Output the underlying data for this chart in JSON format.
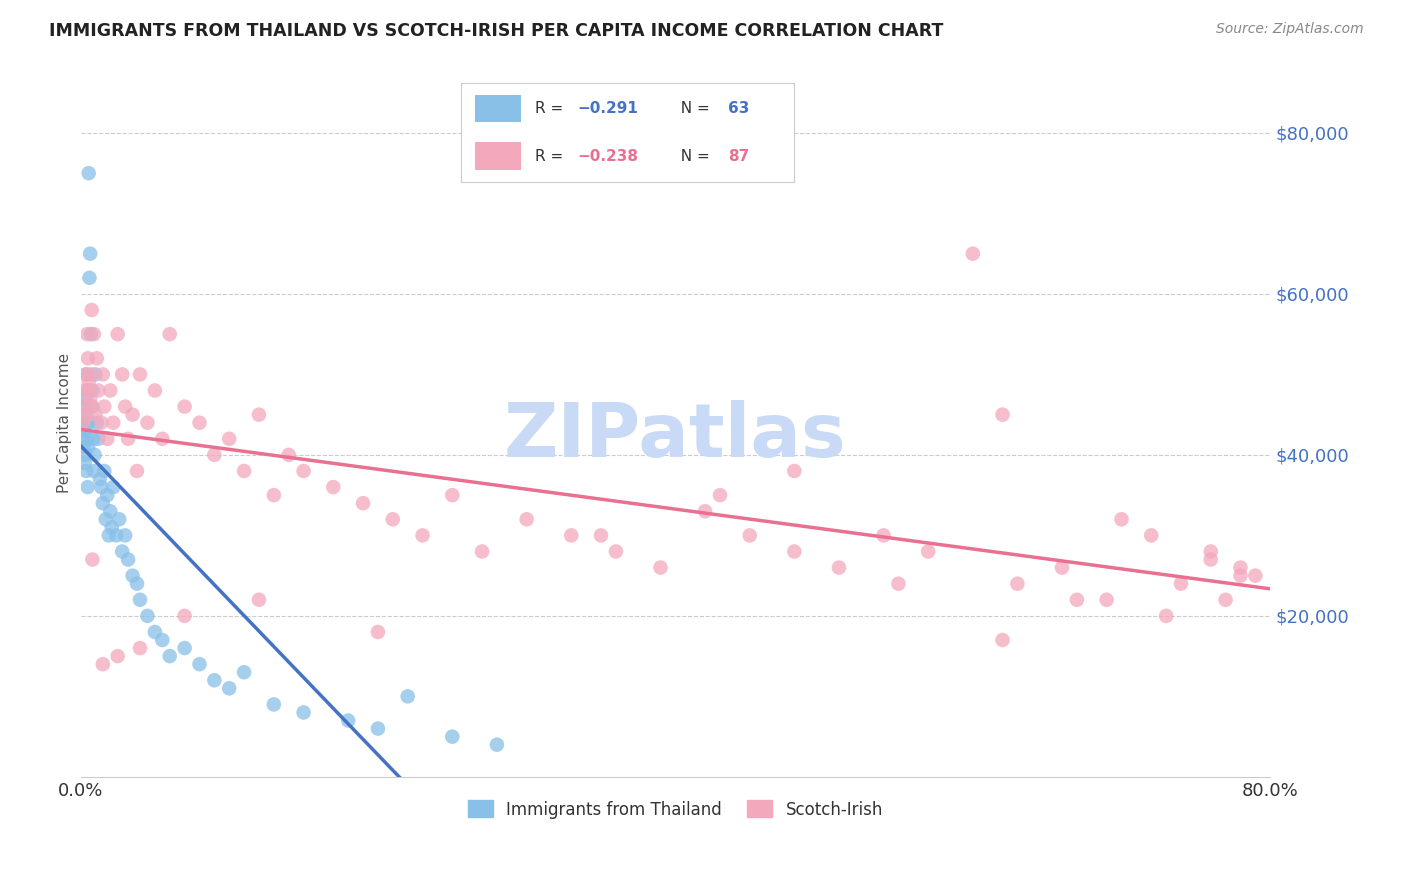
{
  "title": "IMMIGRANTS FROM THAILAND VS SCOTCH-IRISH PER CAPITA INCOME CORRELATION CHART",
  "source": "Source: ZipAtlas.com",
  "ylabel": "Per Capita Income",
  "legend_blue_label": "Immigrants from Thailand",
  "legend_pink_label": "Scotch-Irish",
  "legend_blue_r": "−0.291",
  "legend_blue_n": "63",
  "legend_pink_r": "−0.238",
  "legend_pink_n": "87",
  "background_color": "#ffffff",
  "grid_color": "#cccccc",
  "blue_scatter_color": "#89c0e8",
  "pink_scatter_color": "#f4a8bc",
  "blue_line_color": "#4472c4",
  "pink_line_color": "#e87090",
  "dash_line_color": "#bbbbbb",
  "watermark_text": "ZIPatlas",
  "watermark_color": "#c8daf5",
  "tick_color": "#4472c4",
  "thailand_x": [
    0.15,
    0.18,
    0.2,
    0.22,
    0.25,
    0.28,
    0.3,
    0.32,
    0.35,
    0.38,
    0.4,
    0.42,
    0.45,
    0.48,
    0.5,
    0.52,
    0.55,
    0.58,
    0.6,
    0.65,
    0.7,
    0.75,
    0.8,
    0.85,
    0.9,
    0.95,
    1.0,
    1.1,
    1.2,
    1.3,
    1.4,
    1.5,
    1.6,
    1.7,
    1.8,
    1.9,
    2.0,
    2.1,
    2.2,
    2.4,
    2.6,
    2.8,
    3.0,
    3.2,
    3.5,
    3.8,
    4.0,
    4.5,
    5.0,
    5.5,
    6.0,
    7.0,
    8.0,
    9.0,
    10.0,
    11.0,
    13.0,
    15.0,
    18.0,
    20.0,
    22.0,
    25.0,
    28.0
  ],
  "thailand_y": [
    44000,
    42000,
    46000,
    41000,
    43000,
    39000,
    47000,
    40000,
    45000,
    38000,
    50000,
    44000,
    42000,
    36000,
    48000,
    41000,
    75000,
    44000,
    62000,
    65000,
    55000,
    46000,
    48000,
    42000,
    38000,
    40000,
    50000,
    44000,
    42000,
    37000,
    36000,
    34000,
    38000,
    32000,
    35000,
    30000,
    33000,
    31000,
    36000,
    30000,
    32000,
    28000,
    30000,
    27000,
    25000,
    24000,
    22000,
    20000,
    18000,
    17000,
    15000,
    16000,
    14000,
    12000,
    11000,
    13000,
    9000,
    8000,
    7000,
    6000,
    10000,
    5000,
    4000
  ],
  "scotchirish_x": [
    0.2,
    0.25,
    0.3,
    0.35,
    0.4,
    0.45,
    0.5,
    0.55,
    0.6,
    0.65,
    0.7,
    0.75,
    0.8,
    0.9,
    1.0,
    1.1,
    1.2,
    1.4,
    1.5,
    1.6,
    1.8,
    2.0,
    2.2,
    2.5,
    2.8,
    3.0,
    3.2,
    3.5,
    3.8,
    4.0,
    4.5,
    5.0,
    5.5,
    6.0,
    7.0,
    8.0,
    9.0,
    10.0,
    11.0,
    12.0,
    13.0,
    14.0,
    15.0,
    17.0,
    19.0,
    21.0,
    23.0,
    25.0,
    27.0,
    30.0,
    33.0,
    36.0,
    39.0,
    42.0,
    45.0,
    48.0,
    51.0,
    54.0,
    57.0,
    60.0,
    63.0,
    66.0,
    69.0,
    72.0,
    74.0,
    76.0,
    77.0,
    78.0,
    79.0,
    43.0,
    55.0,
    62.0,
    67.0,
    70.0,
    73.0,
    76.0,
    78.0,
    62.0,
    48.0,
    35.0,
    20.0,
    12.0,
    7.0,
    4.0,
    2.5,
    1.5,
    0.8
  ],
  "scotchirish_y": [
    44000,
    46000,
    48000,
    50000,
    45000,
    55000,
    52000,
    49000,
    48000,
    47000,
    50000,
    58000,
    46000,
    55000,
    45000,
    52000,
    48000,
    44000,
    50000,
    46000,
    42000,
    48000,
    44000,
    55000,
    50000,
    46000,
    42000,
    45000,
    38000,
    50000,
    44000,
    48000,
    42000,
    55000,
    46000,
    44000,
    40000,
    42000,
    38000,
    45000,
    35000,
    40000,
    38000,
    36000,
    34000,
    32000,
    30000,
    35000,
    28000,
    32000,
    30000,
    28000,
    26000,
    33000,
    30000,
    28000,
    26000,
    30000,
    28000,
    65000,
    24000,
    26000,
    22000,
    30000,
    24000,
    28000,
    22000,
    26000,
    25000,
    35000,
    24000,
    45000,
    22000,
    32000,
    20000,
    27000,
    25000,
    17000,
    38000,
    30000,
    18000,
    22000,
    20000,
    16000,
    15000,
    14000,
    27000
  ]
}
